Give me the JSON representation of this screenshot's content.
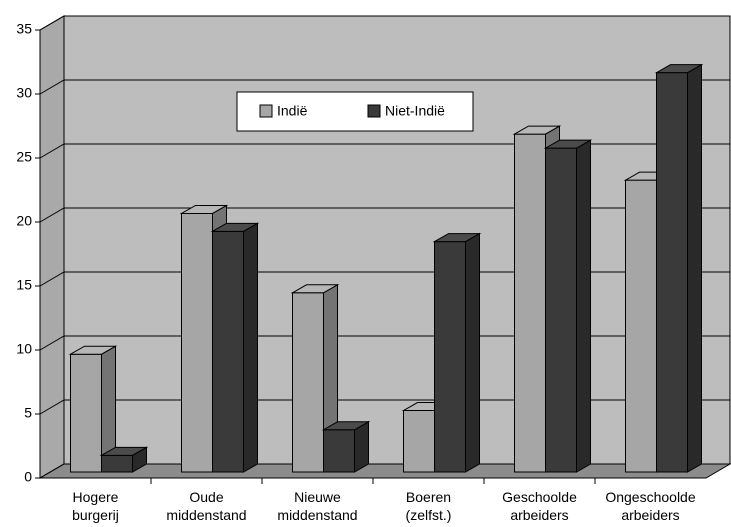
{
  "chart_data": {
    "type": "bar3d",
    "categories": [
      "Hogere burgerij",
      "Oude middenstand",
      "Nieuwe middenstand",
      "Boeren (zelfst.)",
      "Geschoolde arbeiders",
      "Ongeschoolde arbeiders"
    ],
    "series": [
      {
        "name": "Indië",
        "color": "#a6a6a6",
        "values": [
          9.2,
          20.2,
          14,
          4.8,
          26.4,
          22.8
        ]
      },
      {
        "name": "Niet-Indië",
        "color": "#3a3a3a",
        "values": [
          1.3,
          18.8,
          3.3,
          18,
          25.3,
          31.2
        ]
      }
    ],
    "ylim": [
      0,
      35
    ],
    "yticks": [
      0,
      5,
      10,
      15,
      20,
      25,
      30,
      35
    ],
    "grid": true
  }
}
